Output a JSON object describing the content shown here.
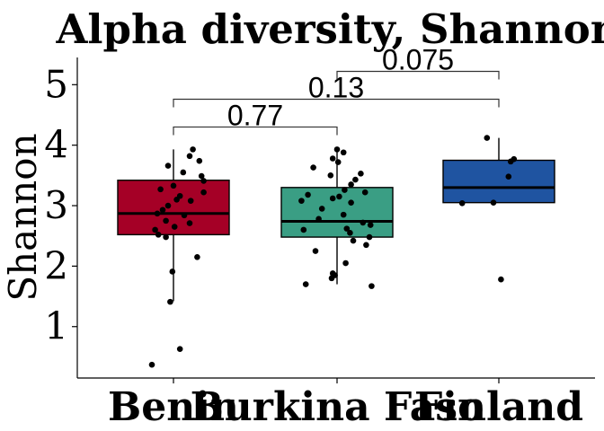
{
  "chart_data": {
    "type": "boxplot",
    "title": "Alpha diversity, Shannon",
    "ylabel": "Shannon",
    "xlabel": "",
    "ylim": [
      0.15,
      5.45
    ],
    "yticks": [
      1,
      2,
      3,
      4,
      5
    ],
    "ytick_labels": [
      "1",
      "2",
      "3",
      "4",
      "5"
    ],
    "grid": false,
    "categories": [
      "Benin",
      "Burkina Faso",
      "Finland"
    ],
    "boxes": [
      {
        "category": "Benin",
        "color": "#a50026",
        "q1": 2.52,
        "median": 2.87,
        "q3": 3.42,
        "whisker_low": 1.42,
        "whisker_high": 3.93
      },
      {
        "category": "Burkina Faso",
        "color": "#3a9e84",
        "q1": 2.48,
        "median": 2.74,
        "q3": 3.3,
        "whisker_low": 1.7,
        "whisker_high": 3.93
      },
      {
        "category": "Finland",
        "color": "#1f54a1",
        "q1": 3.05,
        "median": 3.3,
        "q3": 3.75,
        "whisker_low": 3.05,
        "whisker_high": 4.12
      }
    ],
    "points": [
      {
        "category": "Benin",
        "values": [
          0.37,
          0.63,
          1.41,
          1.91,
          2.15,
          2.48,
          2.52,
          2.6,
          2.65,
          2.71,
          2.75,
          2.84,
          2.87,
          2.93,
          3.0,
          3.08,
          3.1,
          3.16,
          3.22,
          3.27,
          3.33,
          3.41,
          3.49,
          3.55,
          3.66,
          3.74,
          3.82,
          3.93
        ],
        "offsets": [
          -0.2,
          0.06,
          -0.03,
          -0.01,
          0.22,
          -0.07,
          -0.14,
          -0.17,
          0.01,
          0.15,
          -0.07,
          0.1,
          -0.15,
          -0.1,
          -0.05,
          0.16,
          0.03,
          0.06,
          0.28,
          -0.12,
          0.0,
          0.28,
          0.26,
          0.09,
          -0.05,
          0.24,
          0.15,
          0.18
        ]
      },
      {
        "category": "Burkina Faso",
        "values": [
          1.67,
          1.7,
          1.8,
          1.85,
          1.88,
          2.05,
          2.25,
          2.35,
          2.42,
          2.48,
          2.55,
          2.6,
          2.62,
          2.68,
          2.72,
          2.78,
          2.85,
          2.95,
          3.05,
          3.08,
          3.12,
          3.15,
          3.18,
          3.22,
          3.26,
          3.35,
          3.43,
          3.5,
          3.53,
          3.63,
          3.72,
          3.78,
          3.88,
          3.93
        ],
        "offsets": [
          0.32,
          -0.29,
          -0.05,
          -0.02,
          -0.04,
          0.08,
          -0.2,
          0.27,
          0.15,
          0.3,
          0.12,
          -0.31,
          0.09,
          0.31,
          0.24,
          -0.17,
          0.06,
          -0.14,
          0.13,
          -0.33,
          -0.04,
          0.02,
          -0.27,
          0.26,
          0.07,
          0.13,
          0.17,
          -0.06,
          0.22,
          -0.22,
          0.01,
          -0.04,
          0.06,
          0.0
        ]
      },
      {
        "category": "Finland",
        "values": [
          1.78,
          3.04,
          3.05,
          3.48,
          3.73,
          3.77,
          4.12
        ],
        "offsets": [
          0.02,
          -0.34,
          -0.05,
          0.09,
          0.11,
          0.14,
          -0.11
        ]
      }
    ],
    "comparisons": [
      {
        "from": "Benin",
        "to": "Burkina Faso",
        "label": "0.77",
        "y": 4.3
      },
      {
        "from": "Benin",
        "to": "Finland",
        "label": "0.13",
        "y": 4.76
      },
      {
        "from": "Burkina Faso",
        "to": "Finland",
        "label": "0.075",
        "y": 5.22
      }
    ]
  }
}
